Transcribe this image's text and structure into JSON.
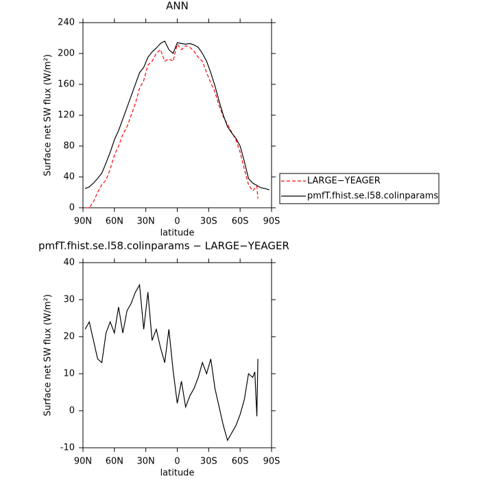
{
  "chart_data": [
    {
      "type": "line",
      "title": "ANN",
      "xlabel": "latitude",
      "ylabel": "Surface net SW flux (W/m²)",
      "x": [
        88,
        84,
        80,
        76,
        72,
        68,
        64,
        60,
        56,
        52,
        48,
        44,
        40,
        36,
        32,
        28,
        24,
        20,
        16,
        12,
        8,
        4,
        0,
        -4,
        -8,
        -12,
        -16,
        -20,
        -24,
        -28,
        -32,
        -36,
        -40,
        -44,
        -48,
        -52,
        -56,
        -60,
        -64,
        -68,
        -72,
        -76,
        -77,
        -80,
        -84,
        -88
      ],
      "series": [
        {
          "name": "LARGE−YEAGER",
          "color": "#ff0000",
          "line_style": "dashed",
          "values": [
            0,
            0,
            8,
            20,
            30,
            36,
            50,
            68,
            80,
            95,
            105,
            120,
            135,
            155,
            165,
            185,
            190,
            200,
            205,
            190,
            193,
            190,
            212,
            205,
            210,
            208,
            203,
            195,
            190,
            175,
            162,
            150,
            132,
            118,
            108,
            98,
            88,
            72,
            50,
            30,
            22,
            28,
            12,
            null,
            null,
            null
          ]
        },
        {
          "name": "pmfT.fhist.se.l58.colinparams",
          "color": "#000000",
          "line_style": "solid",
          "values": [
            25,
            27,
            32,
            38,
            45,
            58,
            72,
            88,
            100,
            115,
            130,
            145,
            160,
            175,
            182,
            195,
            202,
            207,
            213,
            216,
            205,
            200,
            214,
            213,
            212,
            213,
            211,
            208,
            200,
            190,
            175,
            158,
            138,
            120,
            105,
            97,
            90,
            80,
            60,
            38,
            32,
            29,
            28,
            26,
            25,
            23
          ]
        }
      ],
      "xlim": [
        90,
        -90
      ],
      "xticks": [
        {
          "value": 90,
          "label": "90N"
        },
        {
          "value": 60,
          "label": "60N"
        },
        {
          "value": 30,
          "label": "30N"
        },
        0,
        {
          "value": -30,
          "label": "30S"
        },
        {
          "value": -60,
          "label": "60S"
        },
        {
          "value": -90,
          "label": "90S"
        }
      ],
      "ylim": [
        0,
        240
      ],
      "yticks": [
        0,
        40,
        80,
        120,
        160,
        200,
        240
      ],
      "legend": "right"
    },
    {
      "type": "line",
      "title": "pmfT.fhist.se.l58.colinparams − LARGE−YEAGER",
      "xlabel": "latitude",
      "ylabel": "Surface net SW flux (W/m²)",
      "x": [
        88,
        84,
        80,
        76,
        72,
        68,
        64,
        60,
        56,
        52,
        48,
        44,
        40,
        36,
        32,
        28,
        24,
        20,
        16,
        12,
        8,
        4,
        0,
        -4,
        -8,
        -12,
        -16,
        -20,
        -24,
        -28,
        -32,
        -36,
        -40,
        -44,
        -48,
        -52,
        -56,
        -60,
        -64,
        -68,
        -72,
        -74,
        -76,
        -77
      ],
      "series": [
        {
          "name": "pmfT.fhist.se.l58.colinparams − LARGE−YEAGER",
          "color": "#000000",
          "line_style": "solid",
          "values": [
            22,
            24,
            19,
            14,
            13,
            21,
            24,
            21,
            28,
            21,
            27,
            29,
            32,
            34,
            22,
            32,
            19,
            22,
            17,
            13,
            22,
            11,
            2,
            8,
            1,
            4,
            6,
            9,
            13,
            10,
            14,
            6,
            1,
            -4,
            -8,
            -6,
            -4,
            -1,
            3,
            10,
            9,
            10.5,
            -1.5,
            14
          ]
        }
      ],
      "xlim": [
        90,
        -90
      ],
      "xticks": [
        {
          "value": 90,
          "label": "90N"
        },
        {
          "value": 60,
          "label": "60N"
        },
        {
          "value": 30,
          "label": "30N"
        },
        0,
        {
          "value": -30,
          "label": "30S"
        },
        {
          "value": -60,
          "label": "60S"
        },
        {
          "value": -90,
          "label": "90S"
        }
      ],
      "ylim": [
        -10,
        40
      ],
      "yticks": [
        -10,
        0,
        10,
        20,
        30,
        40
      ]
    }
  ]
}
